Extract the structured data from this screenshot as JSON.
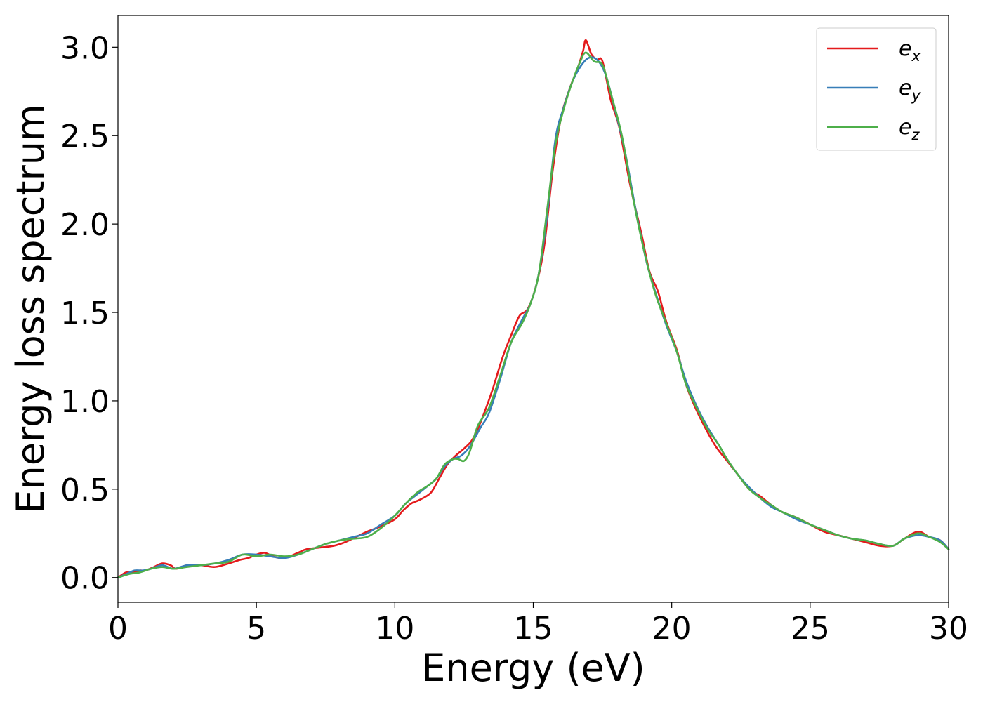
{
  "chart_data": {
    "type": "line",
    "xlabel": "Energy (eV)",
    "ylabel": "Energy loss spectrum",
    "xlim": [
      0,
      30
    ],
    "ylim": [
      -0.14,
      3.18
    ],
    "xticks": [
      0,
      5,
      10,
      15,
      20,
      25,
      30
    ],
    "xtick_labels": [
      "0",
      "5",
      "10",
      "15",
      "20",
      "25",
      "30"
    ],
    "yticks": [
      0.0,
      0.5,
      1.0,
      1.5,
      2.0,
      2.5,
      3.0
    ],
    "ytick_labels": [
      "0.0",
      "0.5",
      "1.0",
      "1.5",
      "2.0",
      "2.5",
      "3.0"
    ],
    "grid": false,
    "legend_position": "top-right",
    "series": [
      {
        "name": "e_x",
        "legend_base": "e",
        "legend_sub": "x",
        "color": "#e41a1c",
        "points": [
          [
            0,
            0.0
          ],
          [
            0.3,
            0.03
          ],
          [
            0.6,
            0.03
          ],
          [
            0.8,
            0.04
          ],
          [
            1.0,
            0.04
          ],
          [
            1.3,
            0.06
          ],
          [
            1.6,
            0.08
          ],
          [
            1.9,
            0.07
          ],
          [
            2.1,
            0.05
          ],
          [
            2.5,
            0.07
          ],
          [
            3.0,
            0.07
          ],
          [
            3.5,
            0.06
          ],
          [
            4.0,
            0.08
          ],
          [
            4.4,
            0.1
          ],
          [
            4.7,
            0.11
          ],
          [
            5.0,
            0.13
          ],
          [
            5.3,
            0.14
          ],
          [
            5.6,
            0.12
          ],
          [
            6.0,
            0.11
          ],
          [
            6.5,
            0.14
          ],
          [
            6.8,
            0.16
          ],
          [
            7.3,
            0.17
          ],
          [
            7.8,
            0.18
          ],
          [
            8.2,
            0.2
          ],
          [
            8.6,
            0.23
          ],
          [
            9.0,
            0.26
          ],
          [
            9.5,
            0.29
          ],
          [
            10.0,
            0.33
          ],
          [
            10.3,
            0.38
          ],
          [
            10.6,
            0.42
          ],
          [
            10.9,
            0.44
          ],
          [
            11.3,
            0.48
          ],
          [
            11.6,
            0.56
          ],
          [
            11.9,
            0.64
          ],
          [
            12.2,
            0.69
          ],
          [
            12.5,
            0.73
          ],
          [
            12.8,
            0.78
          ],
          [
            13.1,
            0.88
          ],
          [
            13.5,
            1.05
          ],
          [
            13.9,
            1.25
          ],
          [
            14.2,
            1.37
          ],
          [
            14.5,
            1.48
          ],
          [
            14.8,
            1.52
          ],
          [
            15.1,
            1.65
          ],
          [
            15.4,
            1.88
          ],
          [
            15.7,
            2.3
          ],
          [
            16.0,
            2.6
          ],
          [
            16.3,
            2.76
          ],
          [
            16.6,
            2.88
          ],
          [
            16.8,
            2.98
          ],
          [
            16.9,
            3.04
          ],
          [
            17.1,
            2.96
          ],
          [
            17.3,
            2.93
          ],
          [
            17.5,
            2.92
          ],
          [
            17.8,
            2.7
          ],
          [
            18.1,
            2.55
          ],
          [
            18.5,
            2.22
          ],
          [
            18.9,
            1.95
          ],
          [
            19.2,
            1.73
          ],
          [
            19.5,
            1.62
          ],
          [
            19.8,
            1.45
          ],
          [
            20.2,
            1.28
          ],
          [
            20.5,
            1.1
          ],
          [
            20.8,
            0.98
          ],
          [
            21.2,
            0.85
          ],
          [
            21.6,
            0.74
          ],
          [
            22.0,
            0.66
          ],
          [
            22.4,
            0.58
          ],
          [
            22.8,
            0.5
          ],
          [
            23.2,
            0.46
          ],
          [
            23.6,
            0.41
          ],
          [
            24.0,
            0.37
          ],
          [
            24.5,
            0.34
          ],
          [
            25.0,
            0.3
          ],
          [
            25.5,
            0.26
          ],
          [
            26.0,
            0.24
          ],
          [
            26.5,
            0.22
          ],
          [
            27.0,
            0.2
          ],
          [
            27.5,
            0.18
          ],
          [
            28.0,
            0.18
          ],
          [
            28.4,
            0.22
          ],
          [
            28.9,
            0.26
          ],
          [
            29.3,
            0.23
          ],
          [
            29.7,
            0.21
          ],
          [
            30.0,
            0.16
          ]
        ]
      },
      {
        "name": "e_y",
        "legend_base": "e",
        "legend_sub": "y",
        "color": "#377eb8",
        "points": [
          [
            0,
            0.0
          ],
          [
            0.3,
            0.02
          ],
          [
            0.6,
            0.04
          ],
          [
            0.9,
            0.04
          ],
          [
            1.2,
            0.05
          ],
          [
            1.6,
            0.07
          ],
          [
            2.0,
            0.05
          ],
          [
            2.5,
            0.07
          ],
          [
            3.0,
            0.07
          ],
          [
            3.5,
            0.08
          ],
          [
            4.0,
            0.1
          ],
          [
            4.5,
            0.13
          ],
          [
            5.0,
            0.13
          ],
          [
            5.5,
            0.12
          ],
          [
            6.0,
            0.11
          ],
          [
            6.5,
            0.13
          ],
          [
            7.0,
            0.16
          ],
          [
            7.5,
            0.19
          ],
          [
            8.0,
            0.21
          ],
          [
            8.5,
            0.23
          ],
          [
            9.0,
            0.25
          ],
          [
            9.5,
            0.3
          ],
          [
            10.0,
            0.35
          ],
          [
            10.4,
            0.42
          ],
          [
            10.8,
            0.47
          ],
          [
            11.2,
            0.52
          ],
          [
            11.5,
            0.56
          ],
          [
            11.8,
            0.63
          ],
          [
            12.1,
            0.67
          ],
          [
            12.4,
            0.69
          ],
          [
            12.7,
            0.74
          ],
          [
            13.1,
            0.85
          ],
          [
            13.4,
            0.93
          ],
          [
            13.8,
            1.12
          ],
          [
            14.2,
            1.33
          ],
          [
            14.6,
            1.46
          ],
          [
            14.9,
            1.55
          ],
          [
            15.2,
            1.72
          ],
          [
            15.5,
            2.05
          ],
          [
            15.8,
            2.48
          ],
          [
            16.1,
            2.66
          ],
          [
            16.4,
            2.8
          ],
          [
            16.7,
            2.89
          ],
          [
            17.0,
            2.94
          ],
          [
            17.3,
            2.93
          ],
          [
            17.6,
            2.85
          ],
          [
            17.9,
            2.68
          ],
          [
            18.3,
            2.42
          ],
          [
            18.7,
            2.08
          ],
          [
            19.1,
            1.78
          ],
          [
            19.5,
            1.57
          ],
          [
            19.8,
            1.43
          ],
          [
            20.2,
            1.27
          ],
          [
            20.5,
            1.12
          ],
          [
            20.9,
            0.97
          ],
          [
            21.3,
            0.85
          ],
          [
            21.7,
            0.75
          ],
          [
            22.0,
            0.67
          ],
          [
            22.4,
            0.58
          ],
          [
            22.8,
            0.51
          ],
          [
            23.2,
            0.45
          ],
          [
            23.6,
            0.4
          ],
          [
            24.0,
            0.37
          ],
          [
            24.5,
            0.33
          ],
          [
            25.0,
            0.3
          ],
          [
            25.5,
            0.27
          ],
          [
            26.0,
            0.24
          ],
          [
            26.5,
            0.22
          ],
          [
            27.0,
            0.21
          ],
          [
            27.5,
            0.19
          ],
          [
            28.0,
            0.18
          ],
          [
            28.4,
            0.22
          ],
          [
            28.9,
            0.24
          ],
          [
            29.3,
            0.23
          ],
          [
            29.7,
            0.21
          ],
          [
            30.0,
            0.16
          ]
        ]
      },
      {
        "name": "e_z",
        "legend_base": "e",
        "legend_sub": "z",
        "color": "#4daf4a",
        "points": [
          [
            0,
            0.0
          ],
          [
            0.4,
            0.02
          ],
          [
            0.8,
            0.03
          ],
          [
            1.2,
            0.05
          ],
          [
            1.6,
            0.06
          ],
          [
            2.0,
            0.05
          ],
          [
            2.5,
            0.06
          ],
          [
            3.0,
            0.07
          ],
          [
            3.5,
            0.08
          ],
          [
            4.0,
            0.09
          ],
          [
            4.5,
            0.13
          ],
          [
            5.0,
            0.12
          ],
          [
            5.5,
            0.13
          ],
          [
            6.0,
            0.12
          ],
          [
            6.5,
            0.13
          ],
          [
            7.0,
            0.16
          ],
          [
            7.5,
            0.19
          ],
          [
            8.0,
            0.21
          ],
          [
            8.5,
            0.22
          ],
          [
            9.0,
            0.23
          ],
          [
            9.5,
            0.28
          ],
          [
            10.0,
            0.35
          ],
          [
            10.4,
            0.42
          ],
          [
            10.8,
            0.48
          ],
          [
            11.2,
            0.52
          ],
          [
            11.5,
            0.56
          ],
          [
            11.8,
            0.64
          ],
          [
            12.1,
            0.67
          ],
          [
            12.3,
            0.67
          ],
          [
            12.5,
            0.66
          ],
          [
            12.7,
            0.71
          ],
          [
            13.0,
            0.86
          ],
          [
            13.4,
            0.96
          ],
          [
            13.8,
            1.14
          ],
          [
            14.2,
            1.33
          ],
          [
            14.6,
            1.44
          ],
          [
            14.9,
            1.55
          ],
          [
            15.2,
            1.72
          ],
          [
            15.5,
            2.08
          ],
          [
            15.8,
            2.45
          ],
          [
            16.1,
            2.65
          ],
          [
            16.4,
            2.8
          ],
          [
            16.7,
            2.92
          ],
          [
            16.9,
            2.97
          ],
          [
            17.2,
            2.92
          ],
          [
            17.5,
            2.9
          ],
          [
            17.8,
            2.74
          ],
          [
            18.2,
            2.5
          ],
          [
            18.6,
            2.15
          ],
          [
            19.0,
            1.85
          ],
          [
            19.4,
            1.61
          ],
          [
            19.8,
            1.44
          ],
          [
            20.2,
            1.27
          ],
          [
            20.5,
            1.1
          ],
          [
            20.9,
            0.96
          ],
          [
            21.3,
            0.84
          ],
          [
            21.7,
            0.75
          ],
          [
            22.0,
            0.67
          ],
          [
            22.4,
            0.58
          ],
          [
            22.8,
            0.5
          ],
          [
            23.2,
            0.45
          ],
          [
            23.6,
            0.41
          ],
          [
            24.0,
            0.37
          ],
          [
            24.5,
            0.34
          ],
          [
            25.0,
            0.3
          ],
          [
            25.5,
            0.27
          ],
          [
            26.0,
            0.24
          ],
          [
            26.5,
            0.22
          ],
          [
            27.0,
            0.21
          ],
          [
            27.5,
            0.19
          ],
          [
            28.0,
            0.18
          ],
          [
            28.4,
            0.22
          ],
          [
            28.9,
            0.25
          ],
          [
            29.3,
            0.23
          ],
          [
            29.7,
            0.2
          ],
          [
            30.0,
            0.16
          ]
        ]
      }
    ]
  }
}
